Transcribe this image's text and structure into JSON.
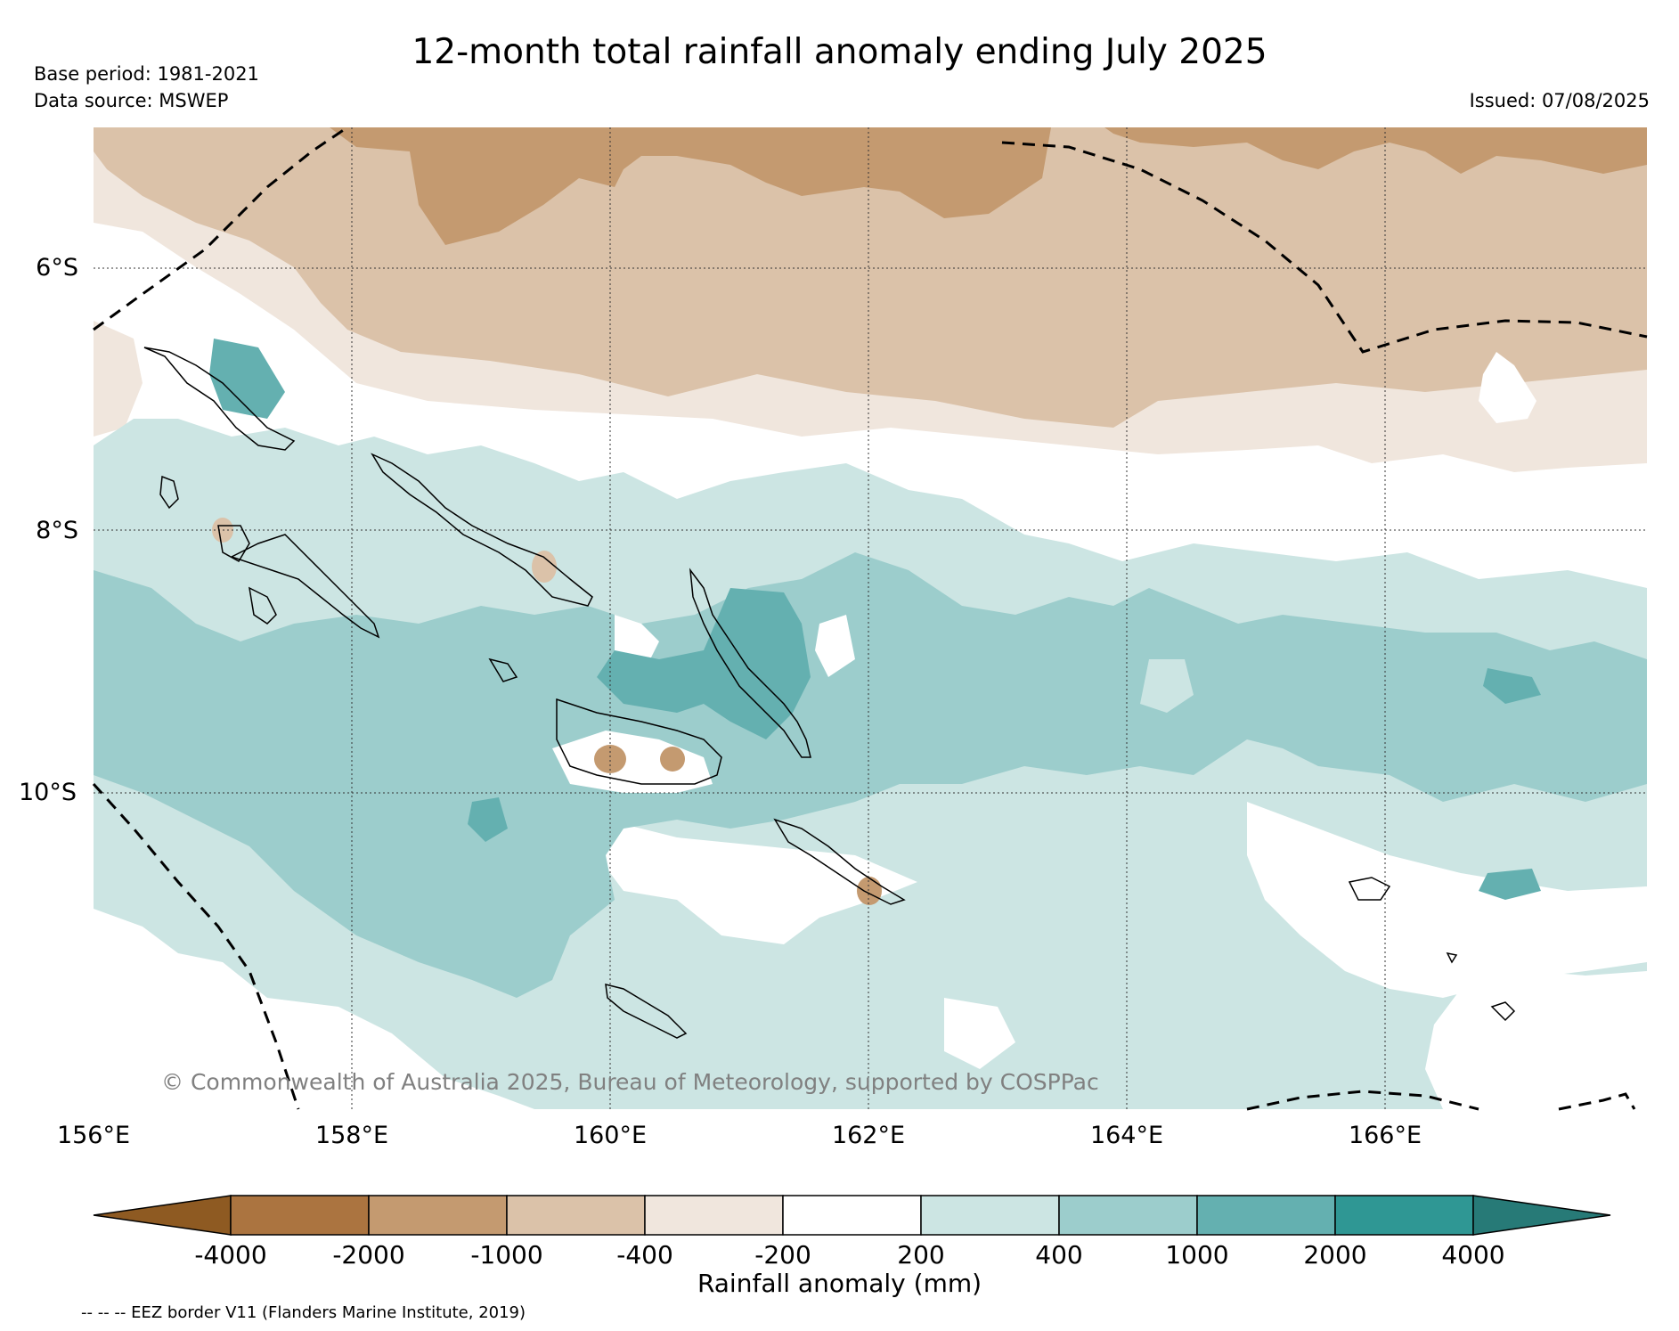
{
  "map": {
    "title": "12-month total rainfall anomaly ending July 2025",
    "base_period": "Base period: 1981-2021",
    "data_source": "Data source: MSWEP",
    "issued": "Issued: 07/08/2025",
    "copyright": "© Commonwealth of Australia 2025, Bureau of Meteorology, supported by COSPPac",
    "lat_labels": [
      "6°S",
      "8°S",
      "10°S"
    ],
    "lon_labels": [
      "156°E",
      "158°E",
      "160°E",
      "162°E",
      "164°E",
      "166°E"
    ],
    "eez_note": "-- -- -- EEZ border V11 (Flanders Marine Institute, 2019)"
  },
  "colorbar": {
    "title": "Rainfall anomaly (mm)",
    "ticks": [
      "-4000",
      "-2000",
      "-1000",
      "-400",
      "-200",
      "200",
      "400",
      "1000",
      "2000",
      "4000"
    ],
    "colors": [
      "#8e5a22",
      "#ab7440",
      "#c49a70",
      "#dbc2a9",
      "#f0e6dd",
      "#ffffff",
      "#cce5e3",
      "#9ccdcc",
      "#64b0b0",
      "#2f9794",
      "#277a77"
    ]
  }
}
